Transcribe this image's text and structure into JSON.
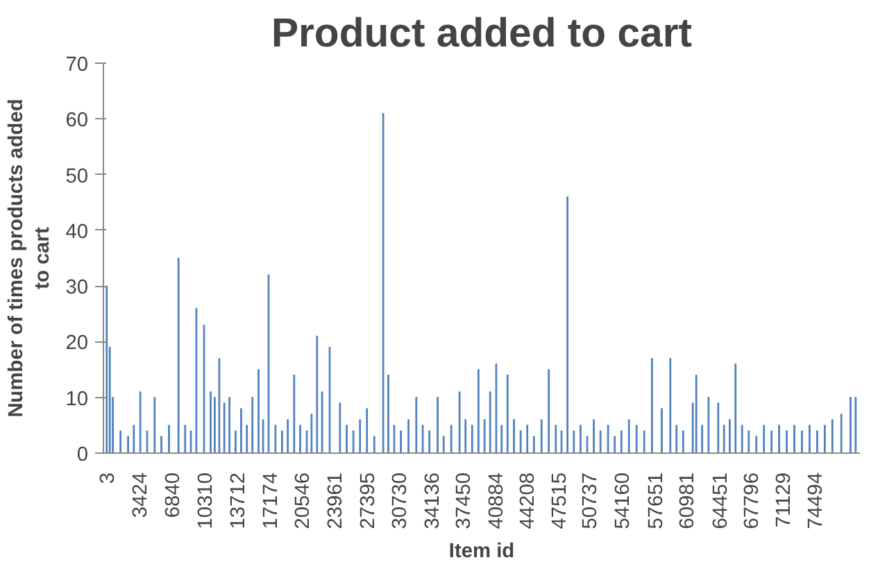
{
  "chart_data": {
    "type": "bar",
    "title": "Product added to cart",
    "xlabel": "Item id",
    "ylabel": "Number of times products added to cart",
    "x": [
      50,
      370,
      690,
      1500,
      2300,
      2900,
      3580,
      4300,
      5090,
      5800,
      6600,
      7600,
      8300,
      8900,
      9480,
      10290,
      10980,
      11410,
      11890,
      12420,
      12960,
      13600,
      14190,
      14800,
      15380,
      16020,
      16500,
      17080,
      17800,
      18500,
      19100,
      19770,
      20400,
      21100,
      21600,
      22180,
      22710,
      23510,
      24590,
      25300,
      26000,
      26700,
      27430,
      28200,
      29140,
      29680,
      30300,
      31000,
      31800,
      32620,
      33300,
      34000,
      34870,
      35500,
      36300,
      37170,
      37800,
      38500,
      39160,
      39800,
      40390,
      41030,
      41600,
      42220,
      42900,
      43600,
      44300,
      45000,
      45800,
      46560,
      47300,
      47900,
      48530,
      49200,
      49900,
      50600,
      51300,
      52000,
      52800,
      53500,
      54200,
      55000,
      55800,
      56600,
      57420,
      58450,
      59350,
      60000,
      60700,
      61710,
      62080,
      62700,
      63370,
      64390,
      65000,
      65600,
      66210,
      66900,
      67600,
      68400,
      69200,
      70000,
      70800,
      71600,
      72400,
      73200,
      74000,
      74800,
      75600,
      76400,
      77340,
      78310,
      78850
    ],
    "values": [
      30,
      19,
      10,
      4,
      3,
      5,
      11,
      4,
      10,
      3,
      5,
      35,
      5,
      4,
      26,
      23,
      11,
      10,
      17,
      9,
      10,
      4,
      8,
      5,
      10,
      15,
      6,
      32,
      5,
      4,
      6,
      14,
      5,
      4,
      7,
      21,
      11,
      19,
      9,
      5,
      4,
      6,
      8,
      3,
      61,
      14,
      5,
      4,
      6,
      10,
      5,
      4,
      10,
      3,
      5,
      11,
      6,
      5,
      15,
      6,
      11,
      16,
      5,
      14,
      6,
      4,
      5,
      3,
      6,
      15,
      5,
      4,
      46,
      4,
      5,
      3,
      6,
      4,
      5,
      3,
      4,
      6,
      5,
      4,
      17,
      8,
      17,
      5,
      4,
      9,
      14,
      5,
      10,
      9,
      5,
      6,
      16,
      5,
      4,
      3,
      5,
      4,
      5,
      4,
      5,
      4,
      5,
      4,
      5,
      6,
      7,
      10,
      10
    ],
    "color": "#4f81bd",
    "xlim": [
      -300,
      79300
    ],
    "xticks": [
      3,
      3424,
      6840,
      10310,
      13712,
      17174,
      20546,
      23961,
      27395,
      30730,
      34136,
      37450,
      40884,
      44208,
      47515,
      50737,
      54160,
      57651,
      60981,
      64451,
      67796,
      71129,
      74494
    ],
    "ylim": [
      0,
      70
    ],
    "yticks": [
      0,
      10,
      20,
      30,
      40,
      50,
      60,
      70
    ],
    "grid": false
  }
}
